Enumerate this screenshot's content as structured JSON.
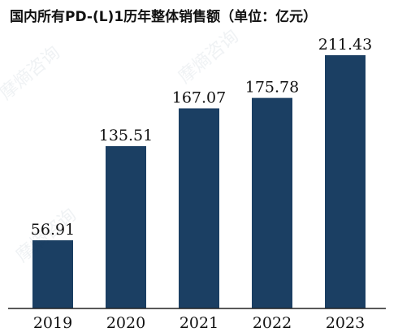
{
  "chart_data": {
    "type": "bar",
    "title": "国内所有PD-(L)1历年整体销售额（单位：亿元）",
    "categories": [
      "2019",
      "2020",
      "2021",
      "2022",
      "2023"
    ],
    "values": [
      56.91,
      135.51,
      167.07,
      175.78,
      211.43
    ],
    "value_labels": [
      "56.91",
      "135.51",
      "167.07",
      "175.78",
      "211.43"
    ],
    "xlabel": "",
    "ylabel": "",
    "ylim": [
      0,
      225
    ],
    "grid": false,
    "legend": "none",
    "bar_color": "#1b3f63",
    "axis_color": "#222222"
  },
  "watermark": {
    "text": "摩熵咨询"
  }
}
